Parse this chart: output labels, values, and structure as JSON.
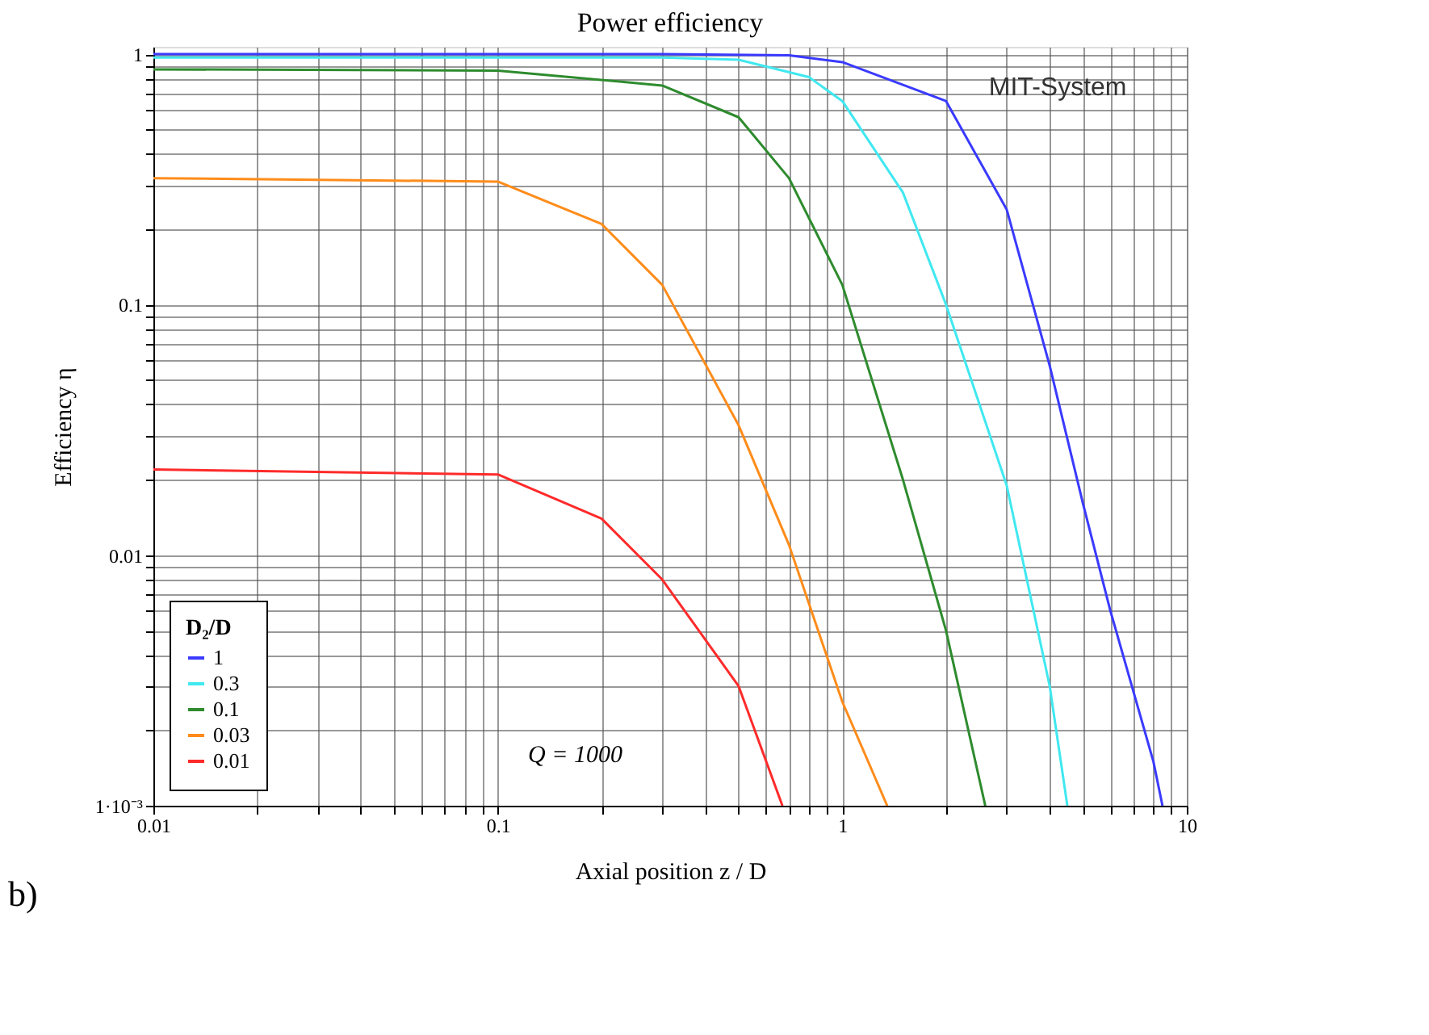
{
  "chart_data": {
    "type": "line",
    "title": "Power efficiency",
    "xlabel": "Axial position z / D",
    "ylabel": "Efficiency η",
    "legend_title": "D₂/D",
    "log": "xy",
    "grid": true,
    "legend": "bottom left",
    "line_style": "solid",
    "marker": "none",
    "xlim": [
      0.01,
      10
    ],
    "ylim": [
      0.001,
      1.07
    ],
    "xticks": [
      0.01,
      {
        "value": 0.02,
        "label": null
      },
      {
        "value": 0.03,
        "label": null
      },
      {
        "value": 0.04,
        "label": null
      },
      {
        "value": 0.05,
        "label": null
      },
      {
        "value": 0.06,
        "label": null
      },
      {
        "value": 0.07,
        "label": null
      },
      {
        "value": 0.08,
        "label": null
      },
      {
        "value": 0.09,
        "label": null
      },
      0.1,
      {
        "value": 0.2,
        "label": null
      },
      {
        "value": 0.3,
        "label": null
      },
      {
        "value": 0.4,
        "label": null
      },
      {
        "value": 0.5,
        "label": null
      },
      {
        "value": 0.6,
        "label": null
      },
      {
        "value": 0.7,
        "label": null
      },
      {
        "value": 0.8,
        "label": null
      },
      {
        "value": 0.9,
        "label": null
      },
      1,
      {
        "value": 2,
        "label": null
      },
      {
        "value": 3,
        "label": null
      },
      {
        "value": 4,
        "label": null
      },
      {
        "value": 5,
        "label": null
      },
      {
        "value": 6,
        "label": null
      },
      {
        "value": 7,
        "label": null
      },
      {
        "value": 8,
        "label": null
      },
      {
        "value": 9,
        "label": null
      },
      10
    ],
    "yticks": [
      {
        "value": 0.001,
        "label": "1·10⁻³"
      },
      {
        "value": 0.002,
        "label": null
      },
      {
        "value": 0.003,
        "label": null
      },
      {
        "value": 0.004,
        "label": null
      },
      {
        "value": 0.005,
        "label": null
      },
      {
        "value": 0.006,
        "label": null
      },
      {
        "value": 0.007,
        "label": null
      },
      {
        "value": 0.008,
        "label": null
      },
      {
        "value": 0.009,
        "label": null
      },
      0.01,
      {
        "value": 0.02,
        "label": null
      },
      {
        "value": 0.03,
        "label": null
      },
      {
        "value": 0.04,
        "label": null
      },
      {
        "value": 0.05,
        "label": null
      },
      {
        "value": 0.06,
        "label": null
      },
      {
        "value": 0.07,
        "label": null
      },
      {
        "value": 0.08,
        "label": null
      },
      {
        "value": 0.09,
        "label": null
      },
      0.1,
      {
        "value": 0.2,
        "label": null
      },
      {
        "value": 0.3,
        "label": null
      },
      {
        "value": 0.4,
        "label": null
      },
      {
        "value": 0.5,
        "label": null
      },
      {
        "value": 0.6,
        "label": null
      },
      {
        "value": 0.7,
        "label": null
      },
      {
        "value": 0.8,
        "label": null
      },
      {
        "value": 0.9,
        "label": null
      },
      1
    ],
    "series": [
      {
        "name": "1",
        "color": "#3a3aff",
        "x": [
          0.01,
          0.3,
          0.7,
          1,
          2,
          3,
          4,
          5,
          6,
          8,
          8.5
        ],
        "values": [
          1.0,
          1.0,
          0.99,
          0.93,
          0.65,
          0.24,
          0.057,
          0.016,
          0.006,
          0.0015,
          0.001
        ]
      },
      {
        "name": "0.3",
        "color": "#40e8f0",
        "x": [
          0.01,
          0.3,
          0.5,
          0.8,
          1,
          1.5,
          2,
          3,
          4,
          4.5
        ],
        "values": [
          0.97,
          0.97,
          0.95,
          0.81,
          0.65,
          0.28,
          0.1,
          0.019,
          0.003,
          0.001
        ]
      },
      {
        "name": "0.1",
        "color": "#2e8b2e",
        "x": [
          0.01,
          0.1,
          0.3,
          0.5,
          0.7,
          1,
          1.5,
          2,
          2.6
        ],
        "values": [
          0.87,
          0.86,
          0.75,
          0.56,
          0.32,
          0.12,
          0.02,
          0.005,
          0.001
        ]
      },
      {
        "name": "0.03",
        "color": "#ff8c1a",
        "x": [
          0.01,
          0.1,
          0.2,
          0.3,
          0.5,
          0.7,
          1,
          1.35
        ],
        "values": [
          0.32,
          0.31,
          0.21,
          0.12,
          0.033,
          0.011,
          0.0026,
          0.001
        ]
      },
      {
        "name": "0.01",
        "color": "#ff2a2a",
        "x": [
          0.01,
          0.1,
          0.2,
          0.3,
          0.5,
          0.67
        ],
        "values": [
          0.022,
          0.021,
          0.014,
          0.008,
          0.003,
          0.001
        ]
      }
    ],
    "annotations": [
      {
        "text": "MIT-System",
        "x": 2.1,
        "y": 0.6
      },
      "Q = 1000",
      "b)"
    ]
  }
}
